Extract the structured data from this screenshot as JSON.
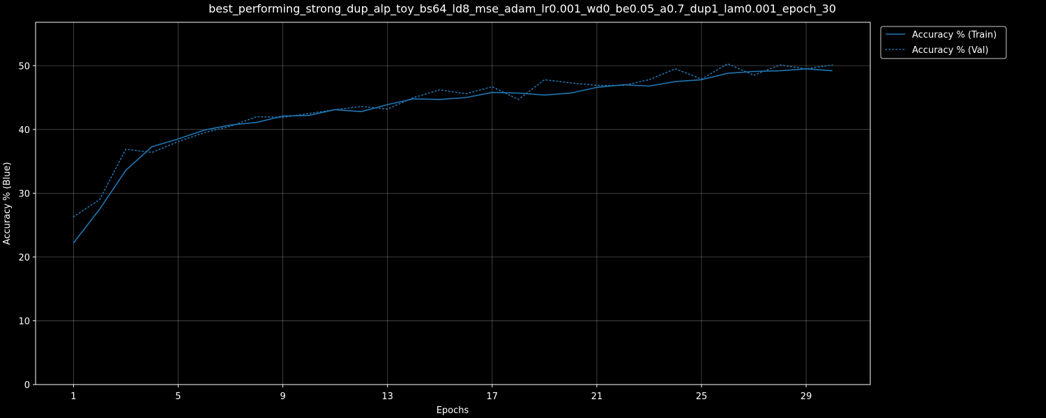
{
  "chart_data": {
    "type": "line",
    "title": "best_performing_strong_dup_alp_toy_bs64_ld8_mse_adam_lr0.001_wd0_be0.05_a0.7_dup1_lam0.001_epoch_30",
    "xlabel": "Epochs",
    "ylabel": "Accuracy % (Blue)",
    "xlim": [
      -0.45,
      31.45
    ],
    "ylim": [
      0,
      56.8
    ],
    "x_ticks": [
      1,
      5,
      9,
      13,
      17,
      21,
      25,
      29
    ],
    "y_ticks": [
      0,
      10,
      20,
      30,
      40,
      50
    ],
    "grid": true,
    "legend_position": "outside-top-right",
    "x": [
      1,
      2,
      3,
      4,
      5,
      6,
      7,
      8,
      9,
      10,
      11,
      12,
      13,
      14,
      15,
      16,
      17,
      18,
      19,
      20,
      21,
      22,
      23,
      24,
      25,
      26,
      27,
      28,
      29,
      30
    ],
    "series": [
      {
        "name": "Accuracy % (Train)",
        "style": "solid",
        "color": "#1f77b4",
        "values": [
          22.2,
          27.5,
          33.6,
          37.3,
          38.5,
          39.9,
          40.7,
          41.1,
          42.1,
          42.2,
          43.1,
          42.8,
          43.9,
          44.8,
          44.7,
          45.0,
          45.8,
          45.7,
          45.4,
          45.7,
          46.6,
          47.0,
          46.8,
          47.5,
          47.8,
          48.8,
          49.1,
          49.2,
          49.5,
          49.2
        ]
      },
      {
        "name": "Accuracy % (Val)",
        "style": "dotted",
        "color": "#1f77b4",
        "values": [
          26.3,
          29.0,
          36.9,
          36.4,
          38.1,
          39.5,
          40.5,
          42.0,
          41.9,
          42.5,
          43.1,
          43.6,
          43.2,
          45.0,
          46.2,
          45.6,
          46.7,
          44.7,
          47.8,
          47.3,
          46.9,
          46.9,
          47.8,
          49.5,
          47.9,
          50.3,
          48.5,
          50.1,
          49.5,
          50.1
        ]
      }
    ]
  }
}
